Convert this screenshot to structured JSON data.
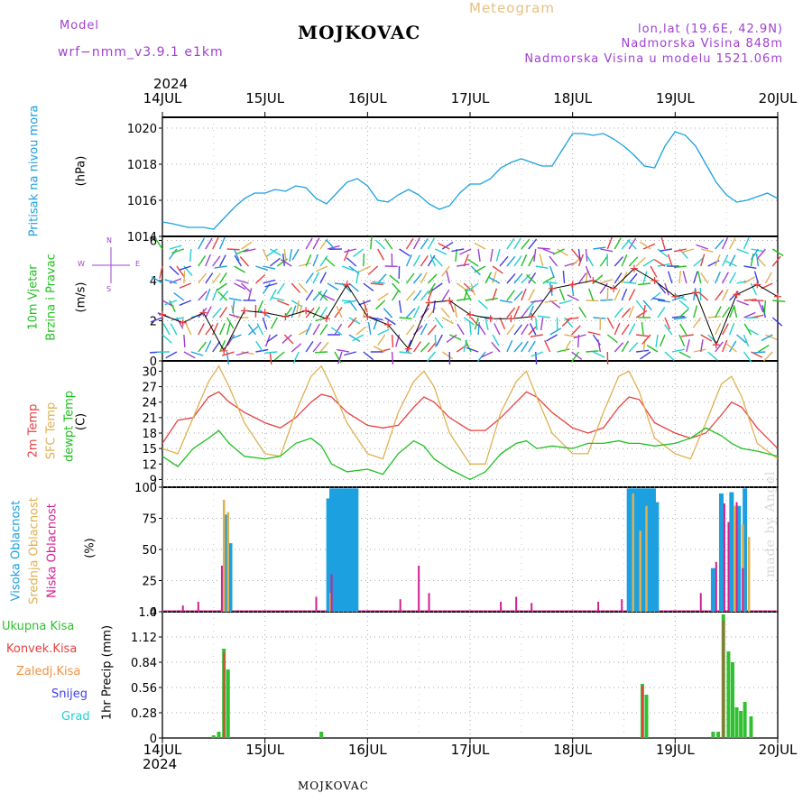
{
  "header": {
    "model_label": "Model",
    "model_name": "wrf−nmm_v3.9.1 e1km",
    "title": "MOJKOVAC",
    "subtitle": "Meteogram",
    "lonlat": "lon,lat (19.6E, 42.9N)",
    "elev": "Nadmorska Visina 848m",
    "elev_model": "Nadmorska Visina u modelu 1521.06m",
    "year_top": "2024",
    "year_bottom": "2024",
    "footer": "MOJKOVAC",
    "credit": "made by Angel"
  },
  "colors": {
    "pressure": "#1ca0e0",
    "temp2m": "#e84040",
    "sfc": "#e0b050",
    "dewpt": "#20c020",
    "purple": "#a040d0",
    "high_cloud": "#1ca0e0",
    "mid_cloud": "#e0b050",
    "low_cloud": "#d02090",
    "precip_total": "#30c030",
    "precip_conv": "#e84040",
    "precip_frozen": "#f09040",
    "snow": "#4040e0",
    "hail": "#20d0d0"
  },
  "x_axis": {
    "ticks": [
      "14JUL",
      "15JUL",
      "16JUL",
      "17JUL",
      "18JUL",
      "19JUL",
      "20JUL"
    ]
  },
  "wind_compass": {
    "w": "W",
    "e": "E",
    "n": "N",
    "s": "S"
  },
  "panel_labels": {
    "pressure_name": "Pritisak na nivou mora",
    "pressure_unit": "(hPa)",
    "wind_name1": "10m Vjetar",
    "wind_name2": "Brzina i Pravac",
    "wind_unit": "(m/s)",
    "temp_2m": "2m Temp",
    "temp_sfc": "SFC Temp",
    "temp_dew": "dewpt Temp",
    "temp_unit": "(C)",
    "cloud_high": "Visoka Oblacnost",
    "cloud_mid": "Srednja Oblacnost",
    "cloud_low": "Niska Oblacnost",
    "cloud_unit": "(%)",
    "precip_unit": "1hr Precip (mm)"
  },
  "precip_legend": [
    "Ukupna Kisa",
    "Konvek.Kisa",
    "Zaledj.Kisa",
    "Snijeg",
    "Grad"
  ],
  "chart_data": [
    {
      "type": "line",
      "name": "pressure",
      "ylabel": "Pritisak na nivou mora (hPa)",
      "ylim": [
        1014,
        1020.6
      ],
      "yticks": [
        1014,
        1016,
        1018,
        1020
      ],
      "grid": true,
      "x_days": [
        0,
        0.1,
        0.25,
        0.4,
        0.5,
        0.55,
        0.6,
        0.7,
        0.8,
        0.9,
        1.0,
        1.1,
        1.2,
        1.3,
        1.4,
        1.5,
        1.6,
        1.7,
        1.8,
        1.9,
        2.0,
        2.1,
        2.2,
        2.3,
        2.4,
        2.5,
        2.6,
        2.7,
        2.8,
        2.9,
        3.0,
        3.1,
        3.2,
        3.3,
        3.4,
        3.5,
        3.6,
        3.7,
        3.8,
        3.9,
        4.0,
        4.1,
        4.2,
        4.3,
        4.4,
        4.5,
        4.6,
        4.7,
        4.8,
        4.9,
        5.0,
        5.1,
        5.2,
        5.3,
        5.4,
        5.5,
        5.6,
        5.7,
        5.8,
        5.9,
        6.0
      ],
      "values": [
        1014.8,
        1014.7,
        1014.5,
        1014.5,
        1014.4,
        1014.7,
        1015.0,
        1015.6,
        1016.1,
        1016.4,
        1016.4,
        1016.6,
        1016.5,
        1016.8,
        1016.7,
        1016.1,
        1015.8,
        1016.4,
        1017.0,
        1017.2,
        1016.8,
        1016.0,
        1015.9,
        1016.3,
        1016.6,
        1016.3,
        1015.8,
        1015.5,
        1015.7,
        1016.4,
        1016.9,
        1016.9,
        1017.2,
        1017.8,
        1018.1,
        1018.3,
        1018.1,
        1017.9,
        1017.9,
        1018.8,
        1019.7,
        1019.7,
        1019.6,
        1019.7,
        1019.4,
        1019.0,
        1018.5,
        1017.9,
        1017.8,
        1019.0,
        1019.8,
        1019.6,
        1019.0,
        1018.0,
        1017.0,
        1016.3,
        1015.9,
        1016.0,
        1016.2,
        1016.4,
        1016.1
      ]
    },
    {
      "type": "line",
      "name": "wind",
      "ylabel": "10m Vjetar Brzina i Pravac (m/s)",
      "ylim": [
        0,
        6.2
      ],
      "yticks": [
        0,
        2,
        4,
        6
      ],
      "grid": true,
      "x_days": [
        0,
        0.2,
        0.4,
        0.6,
        0.8,
        1.0,
        1.2,
        1.4,
        1.6,
        1.8,
        2.0,
        2.2,
        2.4,
        2.6,
        2.8,
        3.0,
        3.2,
        3.4,
        3.6,
        3.8,
        4.0,
        4.2,
        4.4,
        4.6,
        4.8,
        5.0,
        5.2,
        5.4,
        5.6,
        5.8,
        6.0
      ],
      "values": [
        2.3,
        1.9,
        2.4,
        0.5,
        2.5,
        2.4,
        2.2,
        2.5,
        2.1,
        3.8,
        2.2,
        1.8,
        0.6,
        2.9,
        3.0,
        2.3,
        2.1,
        2.1,
        2.2,
        3.6,
        3.8,
        4.0,
        3.6,
        4.6,
        4.0,
        3.2,
        3.4,
        0.8,
        3.3,
        3.8,
        3.2
      ]
    },
    {
      "type": "line",
      "name": "temperature",
      "ylabel": "(C)",
      "ylim": [
        7.5,
        32
      ],
      "yticks": [
        9,
        12,
        15,
        18,
        21,
        24,
        27,
        30
      ],
      "grid": true,
      "x_days": [
        0,
        0.15,
        0.3,
        0.45,
        0.55,
        0.65,
        0.8,
        1.0,
        1.15,
        1.3,
        1.45,
        1.55,
        1.65,
        1.8,
        2.0,
        2.15,
        2.3,
        2.45,
        2.55,
        2.65,
        2.8,
        3.0,
        3.15,
        3.3,
        3.45,
        3.55,
        3.65,
        3.8,
        4.0,
        4.15,
        4.3,
        4.45,
        4.55,
        4.65,
        4.8,
        5.0,
        5.15,
        5.3,
        5.45,
        5.55,
        5.65,
        5.8,
        6.0
      ],
      "series": [
        {
          "name": "2m Temp",
          "values": [
            16,
            20.5,
            21,
            25,
            26,
            24,
            22,
            20,
            19,
            21,
            24,
            25.5,
            25,
            22,
            19.5,
            19,
            19.5,
            23,
            25,
            24,
            21,
            18.5,
            18.5,
            21,
            24,
            26,
            25,
            22,
            19,
            18,
            19,
            23,
            25,
            24.5,
            20,
            18,
            17,
            18,
            21.5,
            24,
            23,
            19,
            15
          ]
        },
        {
          "name": "SFC Temp",
          "values": [
            15,
            14,
            21,
            28,
            31,
            27,
            20,
            14,
            13.5,
            22,
            29,
            31,
            27,
            20,
            14,
            13,
            22,
            28,
            30,
            27,
            18,
            12,
            12,
            22,
            28,
            30,
            25,
            18,
            14,
            14,
            22,
            29,
            30,
            26,
            17,
            14,
            13,
            20,
            27.5,
            29,
            25,
            16,
            13
          ]
        },
        {
          "name": "dewpt Temp",
          "values": [
            13.5,
            11.5,
            15,
            17,
            18.5,
            16,
            13.5,
            13,
            13.5,
            16,
            17,
            15.5,
            12,
            10.5,
            11,
            10,
            14,
            16.5,
            15.5,
            13,
            11,
            9,
            10.5,
            14,
            16,
            16.5,
            15,
            15.5,
            15,
            16,
            16,
            16.5,
            16,
            16,
            15.5,
            16,
            17,
            19,
            17.5,
            16,
            15,
            14.5,
            13.5
          ]
        }
      ]
    },
    {
      "type": "bar",
      "name": "cloud_cover",
      "ylabel": "(%)",
      "ylim": [
        0,
        100
      ],
      "yticks": [
        0,
        25,
        50,
        75,
        100
      ],
      "grid": true,
      "series": [
        {
          "name": "Visoka Oblacnost",
          "x_days": [
            0.62,
            0.66,
            1.62,
            1.65,
            1.68,
            1.71,
            1.74,
            1.77,
            1.8,
            1.83,
            1.86,
            1.89,
            4.55,
            4.58,
            4.61,
            4.64,
            4.67,
            4.7,
            4.73,
            4.76,
            4.79,
            4.82,
            5.37,
            5.45,
            5.55,
            5.62,
            5.68
          ],
          "values": [
            78,
            55,
            91,
            99,
            99,
            99,
            99,
            99,
            99,
            99,
            99,
            99,
            99,
            99,
            99,
            99,
            99,
            99,
            99,
            99,
            99,
            88,
            35,
            95,
            96,
            85,
            99
          ]
        },
        {
          "name": "Srednja Oblacnost",
          "x_days": [
            0.6,
            0.64,
            1.64,
            4.59,
            4.66,
            4.72,
            5.58,
            5.66,
            5.72
          ],
          "values": [
            90,
            80,
            15,
            95,
            65,
            85,
            85,
            70,
            60
          ]
        },
        {
          "name": "Niska Oblacnost",
          "x_days": [
            0.2,
            0.35,
            0.58,
            1.5,
            1.65,
            2.32,
            2.5,
            2.6,
            3.3,
            3.45,
            3.6,
            4.25,
            4.48,
            5.25,
            5.4,
            5.48,
            5.52,
            5.6,
            5.66
          ],
          "values": [
            5,
            8,
            37,
            12,
            30,
            10,
            37,
            15,
            8,
            12,
            7,
            8,
            10,
            15,
            40,
            87,
            72,
            88,
            35
          ]
        }
      ]
    },
    {
      "type": "bar",
      "name": "precip",
      "ylabel": "1hr Precip (mm)",
      "ylim": [
        0,
        1.4
      ],
      "yticks": [
        0,
        0.28,
        0.56,
        0.84,
        1.12,
        1.4
      ],
      "grid": true,
      "series": [
        {
          "name": "Ukupna Kisa",
          "x_days": [
            0.5,
            0.55,
            0.6,
            0.64,
            1.55,
            4.68,
            4.72,
            5.37,
            5.42,
            5.47,
            5.52,
            5.56,
            5.6,
            5.64,
            5.68,
            5.74
          ],
          "values": [
            0.03,
            0.07,
            0.99,
            0.76,
            0.07,
            0.6,
            0.48,
            0.07,
            0.07,
            1.37,
            0.96,
            0.84,
            0.34,
            0.3,
            0.4,
            0.24
          ]
        },
        {
          "name": "Konvek.Kisa",
          "x_days": [
            0.6,
            4.68,
            5.47
          ],
          "values": [
            0.95,
            0.58,
            1.3
          ]
        }
      ]
    }
  ]
}
